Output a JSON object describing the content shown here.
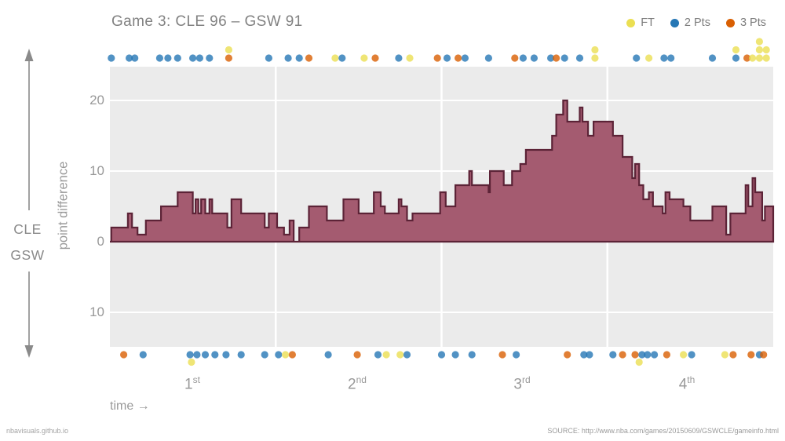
{
  "header": {
    "title": "Game 3: CLE 96  –  GSW 91"
  },
  "legend": {
    "items": [
      {
        "label": "FT",
        "type": "FT"
      },
      {
        "label": "2 Pts",
        "type": "2PT"
      },
      {
        "label": "3 Pts",
        "type": "3PT"
      }
    ]
  },
  "colors": {
    "FT": "#ebdf52",
    "2PT": "#2677b5",
    "3PT": "#d95f02",
    "area_fill": "#a45b70",
    "area_stroke": "#5c2337",
    "panel_bg": "#ebebeb",
    "gridline": "#ffffff",
    "arrow": "#8a8a8a",
    "text_gray": "#999999"
  },
  "yaxis": {
    "label": "point difference",
    "ticks": [
      {
        "label": "20",
        "value": 20
      },
      {
        "label": "10",
        "value": 10
      },
      {
        "label": "0",
        "value": 0
      },
      {
        "label": "10",
        "value": -10
      }
    ]
  },
  "xaxis": {
    "time_label": "time →",
    "quarters": [
      {
        "base": "1",
        "sup": "st"
      },
      {
        "base": "2",
        "sup": "nd"
      },
      {
        "base": "3",
        "sup": "rd"
      },
      {
        "base": "4",
        "sup": "th"
      }
    ]
  },
  "side": {
    "team_top": "CLE",
    "team_bottom": "GSW"
  },
  "footer": {
    "left": "nbavisuals.github.io",
    "right": "SOURCE: http://www.nba.com/games/20150609/GSWCLE/gameinfo.html"
  },
  "chart_data": {
    "type": "area",
    "title": "Game 3: CLE 96 – GSW 91",
    "xlabel": "time (minutes, 4 quarters of 12)",
    "ylabel": "point difference (CLE minus GSW)",
    "x_range_minutes": [
      0,
      48
    ],
    "ylim": [
      -15,
      25
    ],
    "gridlines_y": [
      20,
      10,
      0,
      -10
    ],
    "quarter_boundaries_minutes": [
      12,
      24,
      36
    ],
    "grid": true,
    "legend_position": "top-right",
    "final_point_difference": 5,
    "scores": {
      "CLE": 96,
      "GSW": 91
    },
    "steps_t_diff": [
      [
        0,
        0
      ],
      [
        0.1,
        2
      ],
      [
        1.3,
        4
      ],
      [
        1.6,
        2
      ],
      [
        2.0,
        1
      ],
      [
        2.6,
        3
      ],
      [
        3.7,
        5
      ],
      [
        4.9,
        7
      ],
      [
        6.0,
        4
      ],
      [
        6.2,
        6
      ],
      [
        6.4,
        4
      ],
      [
        6.6,
        6
      ],
      [
        6.9,
        4
      ],
      [
        7.2,
        6
      ],
      [
        7.4,
        4
      ],
      [
        8.5,
        2
      ],
      [
        8.8,
        6
      ],
      [
        9.5,
        4
      ],
      [
        11.2,
        2
      ],
      [
        11.5,
        4
      ],
      [
        12.1,
        2
      ],
      [
        12.6,
        1
      ],
      [
        13.0,
        3
      ],
      [
        13.3,
        0
      ],
      [
        13.7,
        2
      ],
      [
        14.4,
        5
      ],
      [
        15.7,
        3
      ],
      [
        16.9,
        6
      ],
      [
        18.0,
        4
      ],
      [
        19.1,
        7
      ],
      [
        19.6,
        5
      ],
      [
        19.9,
        4
      ],
      [
        20.9,
        6
      ],
      [
        21.1,
        5
      ],
      [
        21.5,
        3
      ],
      [
        21.9,
        4
      ],
      [
        23.9,
        7
      ],
      [
        24.3,
        5
      ],
      [
        25.0,
        8
      ],
      [
        26.0,
        10
      ],
      [
        26.2,
        8
      ],
      [
        27.4,
        7
      ],
      [
        27.5,
        10
      ],
      [
        28.5,
        8
      ],
      [
        29.1,
        10
      ],
      [
        29.7,
        11
      ],
      [
        30.1,
        13
      ],
      [
        32.0,
        15
      ],
      [
        32.3,
        18
      ],
      [
        32.8,
        20
      ],
      [
        33.1,
        17
      ],
      [
        34.0,
        19
      ],
      [
        34.2,
        17
      ],
      [
        34.6,
        15
      ],
      [
        35.0,
        17
      ],
      [
        36.4,
        15
      ],
      [
        37.1,
        12
      ],
      [
        37.8,
        9
      ],
      [
        38.0,
        11
      ],
      [
        38.3,
        8
      ],
      [
        38.6,
        6
      ],
      [
        39.0,
        7
      ],
      [
        39.3,
        5
      ],
      [
        40.0,
        4
      ],
      [
        40.2,
        7
      ],
      [
        40.5,
        6
      ],
      [
        41.5,
        5
      ],
      [
        42.0,
        3
      ],
      [
        43.6,
        5
      ],
      [
        44.6,
        1
      ],
      [
        44.9,
        4
      ],
      [
        46.0,
        8
      ],
      [
        46.2,
        5
      ],
      [
        46.5,
        9
      ],
      [
        46.7,
        7
      ],
      [
        47.2,
        3
      ],
      [
        47.4,
        5
      ]
    ],
    "cle_score_events_t_type_lane": [
      [
        0.1,
        "2PT",
        0
      ],
      [
        1.4,
        "2PT",
        0
      ],
      [
        1.8,
        "2PT",
        0
      ],
      [
        3.6,
        "2PT",
        0
      ],
      [
        4.2,
        "2PT",
        0
      ],
      [
        4.9,
        "2PT",
        0
      ],
      [
        6.0,
        "2PT",
        0
      ],
      [
        6.5,
        "2PT",
        0
      ],
      [
        7.2,
        "2PT",
        0
      ],
      [
        8.6,
        "3PT",
        0
      ],
      [
        8.6,
        "FT",
        1
      ],
      [
        11.5,
        "2PT",
        0
      ],
      [
        12.9,
        "2PT",
        0
      ],
      [
        13.7,
        "2PT",
        0
      ],
      [
        14.4,
        "3PT",
        0
      ],
      [
        16.3,
        "FT",
        0
      ],
      [
        16.8,
        "2PT",
        0
      ],
      [
        18.4,
        "FT",
        0
      ],
      [
        19.2,
        "3PT",
        0
      ],
      [
        20.9,
        "2PT",
        0
      ],
      [
        21.7,
        "FT",
        0
      ],
      [
        23.7,
        "3PT",
        0
      ],
      [
        24.4,
        "2PT",
        0
      ],
      [
        25.2,
        "3PT",
        0
      ],
      [
        25.7,
        "2PT",
        0
      ],
      [
        27.4,
        "2PT",
        0
      ],
      [
        29.3,
        "3PT",
        0
      ],
      [
        29.9,
        "2PT",
        0
      ],
      [
        30.7,
        "2PT",
        0
      ],
      [
        31.9,
        "2PT",
        0
      ],
      [
        32.3,
        "3PT",
        0
      ],
      [
        32.9,
        "2PT",
        0
      ],
      [
        34.0,
        "2PT",
        0
      ],
      [
        35.1,
        "FT",
        0
      ],
      [
        35.1,
        "FT",
        1
      ],
      [
        38.1,
        "2PT",
        0
      ],
      [
        39.0,
        "FT",
        0
      ],
      [
        40.1,
        "2PT",
        0
      ],
      [
        40.6,
        "2PT",
        0
      ],
      [
        43.6,
        "2PT",
        0
      ],
      [
        45.3,
        "2PT",
        0
      ],
      [
        45.3,
        "FT",
        1
      ],
      [
        46.1,
        "3PT",
        0
      ],
      [
        46.5,
        "FT",
        0
      ],
      [
        47.0,
        "FT",
        0
      ],
      [
        47.0,
        "FT",
        1
      ],
      [
        47.0,
        "FT",
        2
      ],
      [
        47.5,
        "FT",
        0
      ],
      [
        47.5,
        "FT",
        1
      ]
    ],
    "gsw_score_events_t_type_lane": [
      [
        1.0,
        "3PT",
        0
      ],
      [
        2.4,
        "2PT",
        0
      ],
      [
        5.8,
        "2PT",
        0
      ],
      [
        5.9,
        "FT",
        1
      ],
      [
        6.3,
        "2PT",
        0
      ],
      [
        6.9,
        "2PT",
        0
      ],
      [
        7.6,
        "2PT",
        0
      ],
      [
        8.4,
        "2PT",
        0
      ],
      [
        9.5,
        "2PT",
        0
      ],
      [
        11.2,
        "2PT",
        0
      ],
      [
        12.2,
        "2PT",
        0
      ],
      [
        12.7,
        "FT",
        0
      ],
      [
        13.2,
        "3PT",
        0
      ],
      [
        15.8,
        "2PT",
        0
      ],
      [
        17.9,
        "3PT",
        0
      ],
      [
        19.4,
        "2PT",
        0
      ],
      [
        20.0,
        "FT",
        0
      ],
      [
        21.0,
        "FT",
        0
      ],
      [
        21.5,
        "2PT",
        0
      ],
      [
        24.0,
        "2PT",
        0
      ],
      [
        25.0,
        "2PT",
        0
      ],
      [
        26.2,
        "2PT",
        0
      ],
      [
        28.4,
        "3PT",
        0
      ],
      [
        29.4,
        "2PT",
        0
      ],
      [
        33.1,
        "3PT",
        0
      ],
      [
        34.3,
        "2PT",
        0
      ],
      [
        34.7,
        "2PT",
        0
      ],
      [
        36.4,
        "2PT",
        0
      ],
      [
        37.1,
        "3PT",
        0
      ],
      [
        38.0,
        "3PT",
        0
      ],
      [
        38.3,
        "FT",
        1
      ],
      [
        38.5,
        "2PT",
        0
      ],
      [
        38.9,
        "2PT",
        0
      ],
      [
        39.4,
        "2PT",
        0
      ],
      [
        40.3,
        "3PT",
        0
      ],
      [
        41.5,
        "FT",
        0
      ],
      [
        42.1,
        "2PT",
        0
      ],
      [
        44.5,
        "FT",
        0
      ],
      [
        45.1,
        "3PT",
        0
      ],
      [
        46.4,
        "3PT",
        0
      ],
      [
        47.0,
        "2PT",
        0
      ],
      [
        47.3,
        "3PT",
        0
      ]
    ]
  }
}
